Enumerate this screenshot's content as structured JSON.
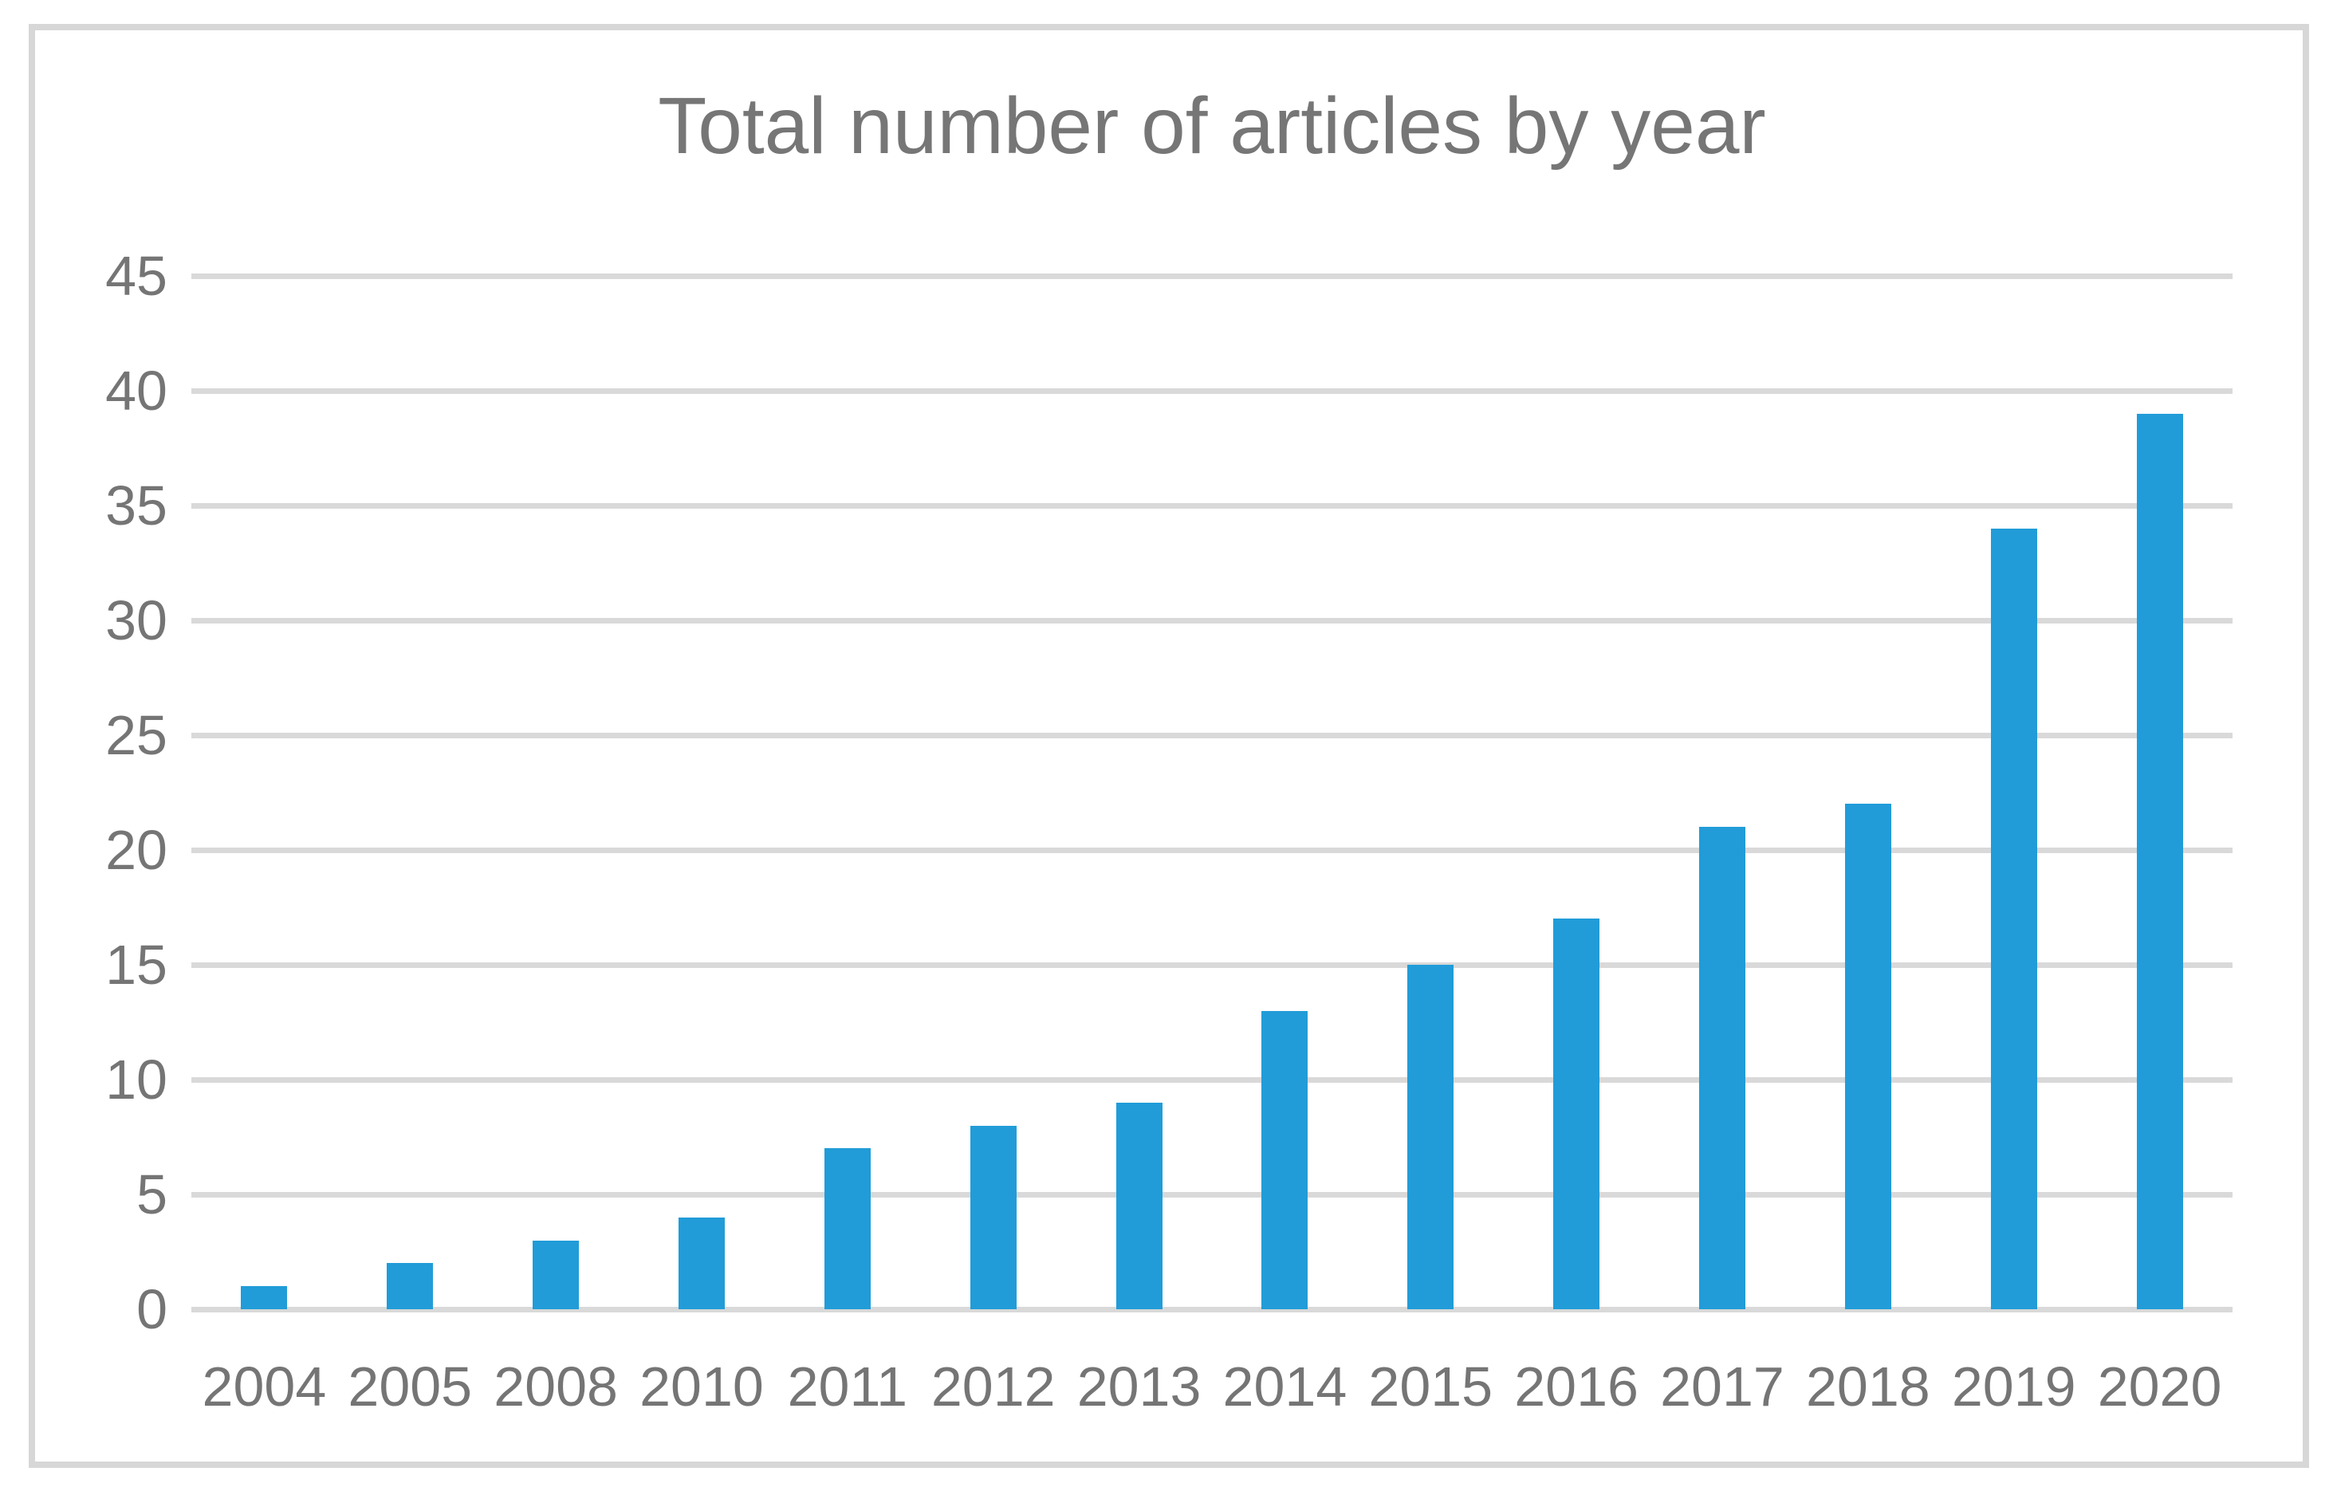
{
  "figure": {
    "background": "#ffffff",
    "border_color": "#d7d7d7"
  },
  "chart_data": {
    "type": "bar",
    "title": "Total number of articles by year",
    "categories": [
      "2004",
      "2005",
      "2008",
      "2010",
      "2011",
      "2012",
      "2013",
      "2014",
      "2015",
      "2016",
      "2017",
      "2018",
      "2019",
      "2020"
    ],
    "values": [
      1,
      2,
      3,
      4,
      7,
      8,
      9,
      13,
      15,
      17,
      21,
      22,
      34,
      39
    ],
    "xlabel": "",
    "ylabel": "",
    "ylim": [
      0,
      45
    ],
    "yticks": [
      0,
      5,
      10,
      15,
      20,
      25,
      30,
      35,
      40,
      45
    ],
    "grid": true,
    "legend": false,
    "bar_color": "#219cd8",
    "gridline_color": "#d9d9d9",
    "text_color": "#757575"
  }
}
